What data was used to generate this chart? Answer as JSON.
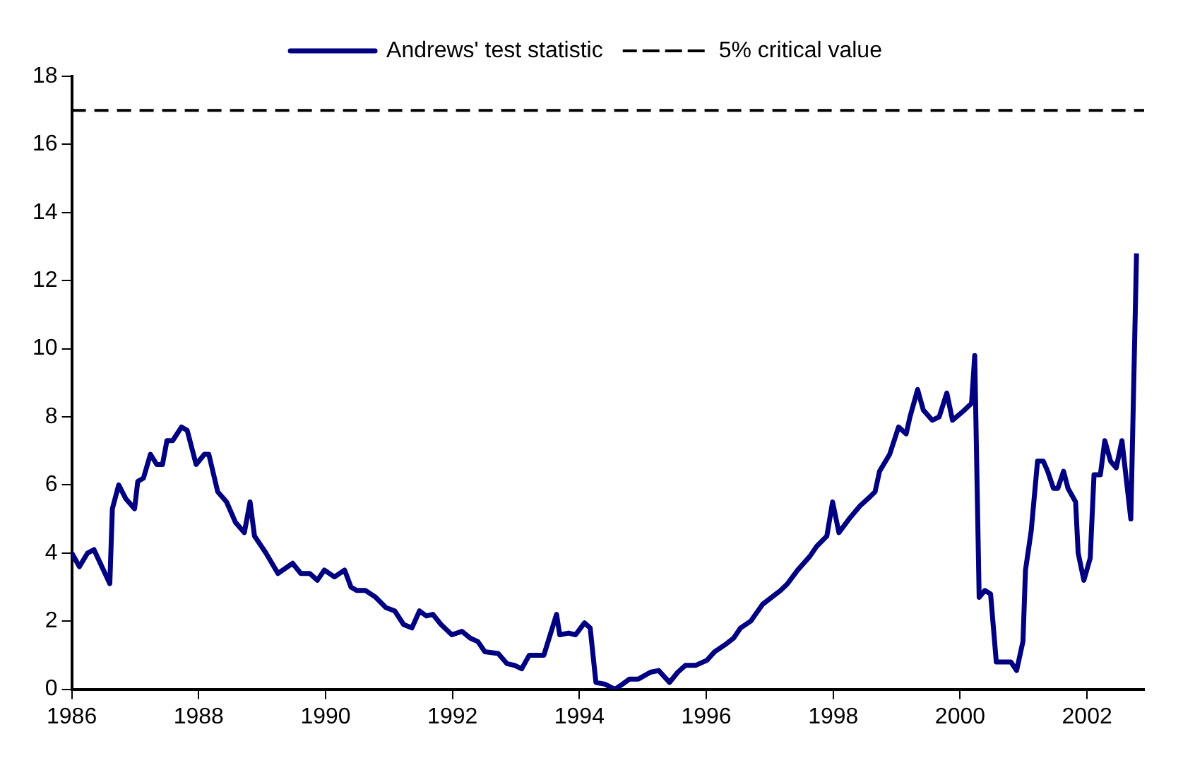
{
  "chart_data": {
    "type": "line",
    "legend": "top",
    "grid": false,
    "marker": "none",
    "line_style": "solid",
    "xlim": [
      1986,
      2002.9
    ],
    "xticks": [
      1986,
      1988,
      1990,
      1992,
      1994,
      1996,
      1998,
      2000,
      2002
    ],
    "ylim": [
      0,
      18
    ],
    "yticks": [
      0,
      2,
      4,
      6,
      8,
      10,
      12,
      14,
      16,
      18
    ],
    "ref_lines": [
      {
        "axis": "y",
        "value": 17,
        "label": "5% critical value",
        "color": "#000000",
        "line_style": "dashed"
      }
    ],
    "series": [
      {
        "name": "Andrews' test statistic",
        "color": "#000080",
        "x": [
          1986.0,
          1986.12,
          1986.25,
          1986.35,
          1986.6,
          1986.64,
          1986.74,
          1986.85,
          1986.99,
          1987.04,
          1987.13,
          1987.24,
          1987.34,
          1987.43,
          1987.5,
          1987.59,
          1987.73,
          1987.82,
          1987.96,
          1988.09,
          1988.16,
          1988.3,
          1988.44,
          1988.58,
          1988.72,
          1988.81,
          1988.88,
          1989.06,
          1989.25,
          1989.48,
          1989.61,
          1989.75,
          1989.87,
          1989.98,
          1990.14,
          1990.3,
          1990.4,
          1990.49,
          1990.63,
          1990.79,
          1990.95,
          1991.09,
          1991.23,
          1991.36,
          1991.48,
          1991.59,
          1991.69,
          1991.82,
          1991.99,
          1992.15,
          1992.28,
          1992.4,
          1992.51,
          1992.72,
          1992.86,
          1992.98,
          1993.09,
          1993.21,
          1993.44,
          1993.64,
          1993.69,
          1993.83,
          1993.94,
          1994.08,
          1994.17,
          1994.26,
          1994.4,
          1994.56,
          1994.68,
          1994.79,
          1994.93,
          1995.12,
          1995.25,
          1995.42,
          1995.55,
          1995.67,
          1995.83,
          1996.01,
          1996.13,
          1996.29,
          1996.43,
          1996.54,
          1996.7,
          1996.89,
          1997.17,
          1997.28,
          1997.44,
          1997.63,
          1997.74,
          1997.9,
          1997.99,
          1998.09,
          1998.25,
          1998.43,
          1998.55,
          1998.66,
          1998.73,
          1998.89,
          1999.03,
          1999.15,
          1999.21,
          1999.33,
          1999.42,
          1999.56,
          1999.67,
          1999.79,
          1999.88,
          2000.07,
          2000.18,
          2000.23,
          2000.3,
          2000.39,
          2000.48,
          2000.57,
          2000.8,
          2000.89,
          2000.99,
          2001.03,
          2001.12,
          2001.22,
          2001.31,
          2001.38,
          2001.47,
          2001.54,
          2001.63,
          2001.7,
          2001.82,
          2001.86,
          2001.95,
          2002.05,
          2002.11,
          2002.21,
          2002.28,
          2002.37,
          2002.46,
          2002.55,
          2002.69,
          2002.78
        ],
        "values": [
          4.0,
          3.6,
          4.0,
          4.1,
          3.1,
          5.3,
          6.0,
          5.6,
          5.3,
          6.1,
          6.2,
          6.9,
          6.6,
          6.6,
          7.3,
          7.3,
          7.7,
          7.6,
          6.6,
          6.9,
          6.9,
          5.8,
          5.5,
          4.9,
          4.6,
          5.5,
          4.5,
          4.0,
          3.4,
          3.7,
          3.4,
          3.4,
          3.2,
          3.5,
          3.3,
          3.5,
          3.0,
          2.9,
          2.9,
          2.7,
          2.4,
          2.3,
          1.9,
          1.8,
          2.3,
          2.15,
          2.2,
          1.9,
          1.6,
          1.7,
          1.5,
          1.4,
          1.1,
          1.05,
          0.75,
          0.7,
          0.6,
          1.0,
          1.0,
          2.2,
          1.6,
          1.65,
          1.6,
          1.95,
          1.8,
          0.2,
          0.15,
          0.0,
          0.15,
          0.3,
          0.3,
          0.5,
          0.55,
          0.2,
          0.5,
          0.7,
          0.7,
          0.85,
          1.1,
          1.3,
          1.5,
          1.8,
          2.0,
          2.5,
          2.9,
          3.1,
          3.5,
          3.9,
          4.2,
          4.5,
          5.5,
          4.6,
          5.0,
          5.4,
          5.6,
          5.8,
          6.4,
          6.9,
          7.7,
          7.5,
          8.0,
          8.8,
          8.2,
          7.9,
          8.0,
          8.7,
          7.9,
          8.2,
          8.4,
          9.8,
          2.7,
          2.9,
          2.8,
          0.8,
          0.8,
          0.55,
          1.4,
          3.5,
          4.65,
          6.7,
          6.7,
          6.4,
          5.9,
          5.9,
          6.4,
          5.9,
          5.5,
          4.0,
          3.2,
          3.85,
          6.3,
          6.3,
          7.3,
          6.7,
          6.5,
          7.3,
          5.0,
          12.8
        ]
      }
    ]
  }
}
